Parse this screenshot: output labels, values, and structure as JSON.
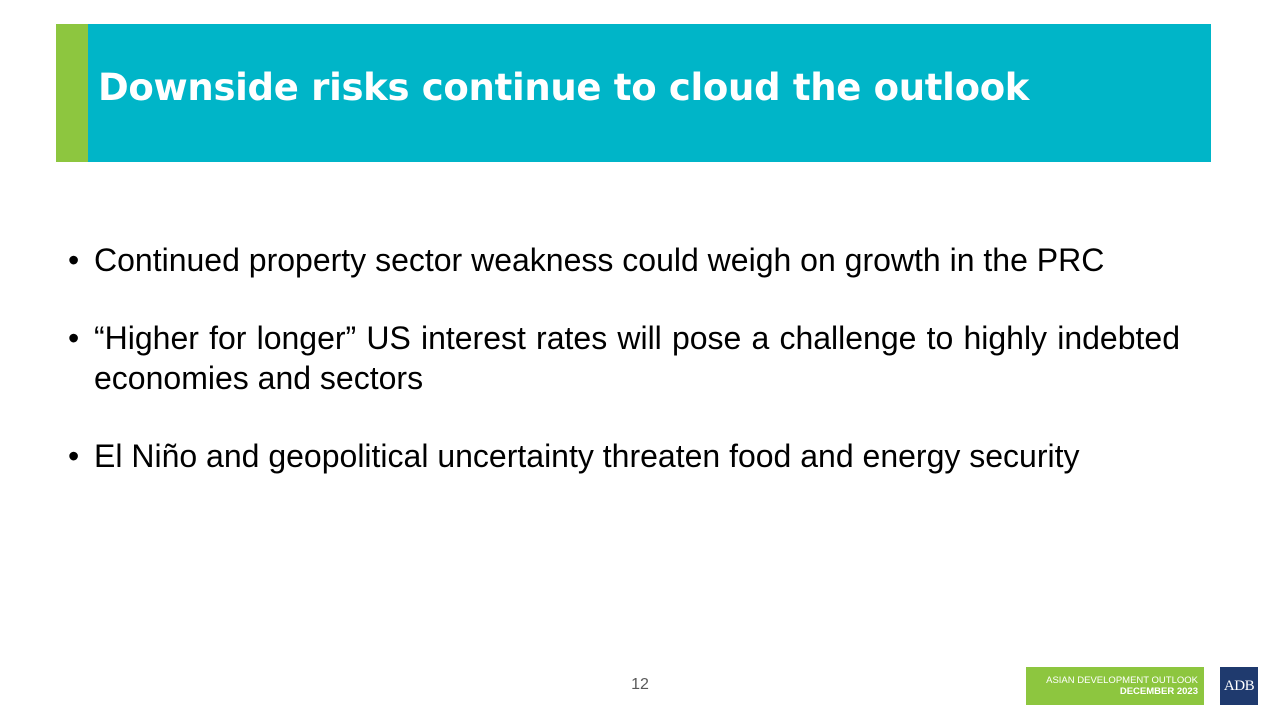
{
  "slide": {
    "title": "Downside risks continue to cloud the outlook",
    "bullets": [
      "Continued property sector weakness could weigh on growth in the PRC",
      "“Higher for longer” US interest rates will pose a challenge to highly indebted economies and sectors",
      "El Niño and geopolitical uncertainty threaten food and energy security"
    ],
    "bullet_symbol": "•",
    "page_number": "12"
  },
  "footer": {
    "publication_line1": "ASIAN DEVELOPMENT OUTLOOK",
    "publication_line2": "DECEMBER 2023",
    "logo_text": "ADB"
  },
  "colors": {
    "title_band": "#00b5c8",
    "title_accent": "#8dc63f",
    "badge": "#8dc63f",
    "logo": "#1f3a6e"
  }
}
